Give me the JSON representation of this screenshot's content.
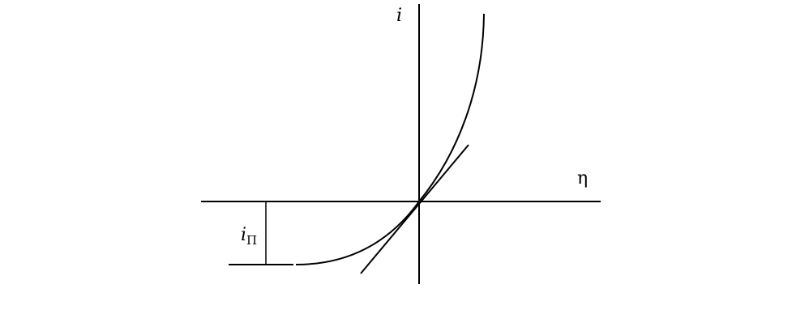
{
  "diagram": {
    "y_axis_label": "i",
    "x_axis_label": "η",
    "limit_label_main": "i",
    "limit_label_sub": "П",
    "colors": {
      "stroke": "#000000",
      "background": "#ffffff"
    }
  }
}
